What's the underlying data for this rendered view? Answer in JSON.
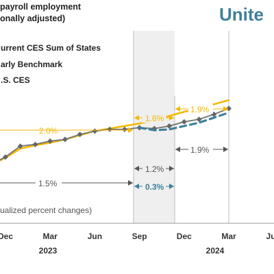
{
  "header": {
    "title_line1": "payroll employment",
    "title_line2": "onally adjusted)",
    "brand": "Unite"
  },
  "legend": {
    "items": [
      {
        "label": "urrent CES Sum of States",
        "color": "#4a4a4a"
      },
      {
        "label": "arly Benchmark",
        "color": "#f5b800"
      },
      {
        "label": ".S. CES",
        "color": "#3f7f9a"
      }
    ]
  },
  "annotations": {
    "rate_2_0": "2.0%",
    "rate_1_6": "1.6%",
    "rate_1_9_top": "1.9%",
    "rate_1_9_mid": "1.9%",
    "rate_1_2": "1.2%",
    "rate_0_3": "0.3%",
    "rate_1_5": "1.5%",
    "footnote": "ualized percent changes)"
  },
  "colors": {
    "benchmark": "#f5b800",
    "sum_of_states": "#7a7a7a",
    "marker": "#666666",
    "us_ces": "#3f7f9a",
    "brand": "#3f7f9a",
    "shade": "#ececec",
    "arrow_gray": "#555555"
  },
  "chart_data": {
    "type": "line",
    "title": "",
    "xlabel": "",
    "ylabel": "",
    "x_ticks": [
      "Dec",
      "Mar",
      "Jun",
      "Sep",
      "Dec",
      "Mar",
      "Jun"
    ],
    "x_years": [
      "2023",
      "2024"
    ],
    "grid": false,
    "legend_position": "top-left",
    "series": [
      {
        "name": "urrent CES Sum of States",
        "style": "solid-with-diamonds",
        "x": [
          "Nov 2022",
          "Dec 2022",
          "Jan 2023",
          "Feb 2023",
          "Mar 2023",
          "Apr 2023",
          "May 2023",
          "Jun 2023",
          "Jul 2023",
          "Aug 2023",
          "Sep 2023",
          "Oct 2023",
          "Nov 2023",
          "Dec 2023",
          "Jan 2024",
          "Feb 2024",
          "Mar 2024"
        ],
        "y": [
          0.8,
          1.7,
          3.0,
          3.2,
          3.6,
          3.8,
          4.4,
          4.8,
          5.0,
          5.0,
          5.2,
          5.1,
          5.4,
          5.9,
          6.2,
          6.8,
          7.5
        ]
      },
      {
        "name": "arly Benchmark",
        "style": "solid",
        "x": [
          "Nov 2022",
          "Dec 2022",
          "Jan 2023",
          "Feb 2023",
          "Mar 2023",
          "Apr 2023",
          "May 2023",
          "Jun 2023",
          "Jul 2023",
          "Aug 2023",
          "Sep 2023",
          "Oct 2023",
          "Nov 2023",
          "Dec 2023",
          "Jan 2024",
          "Feb 2024",
          "Mar 2024"
        ],
        "y": [
          0.8,
          1.6,
          2.7,
          3.1,
          3.4,
          3.8,
          4.3,
          4.8,
          5.1,
          5.4,
          5.7,
          6.1,
          6.6,
          7.1,
          7.5,
          8.0,
          8.5
        ]
      },
      {
        "name": ".S. CES",
        "style": "dashed",
        "x": [
          "Sep 2023",
          "Oct 2023",
          "Nov 2023",
          "Dec 2023",
          "Jan 2024",
          "Feb 2024",
          "Mar 2024"
        ],
        "y": [
          5.2,
          4.9,
          5.0,
          5.4,
          5.8,
          6.4,
          7.0
        ]
      }
    ]
  }
}
